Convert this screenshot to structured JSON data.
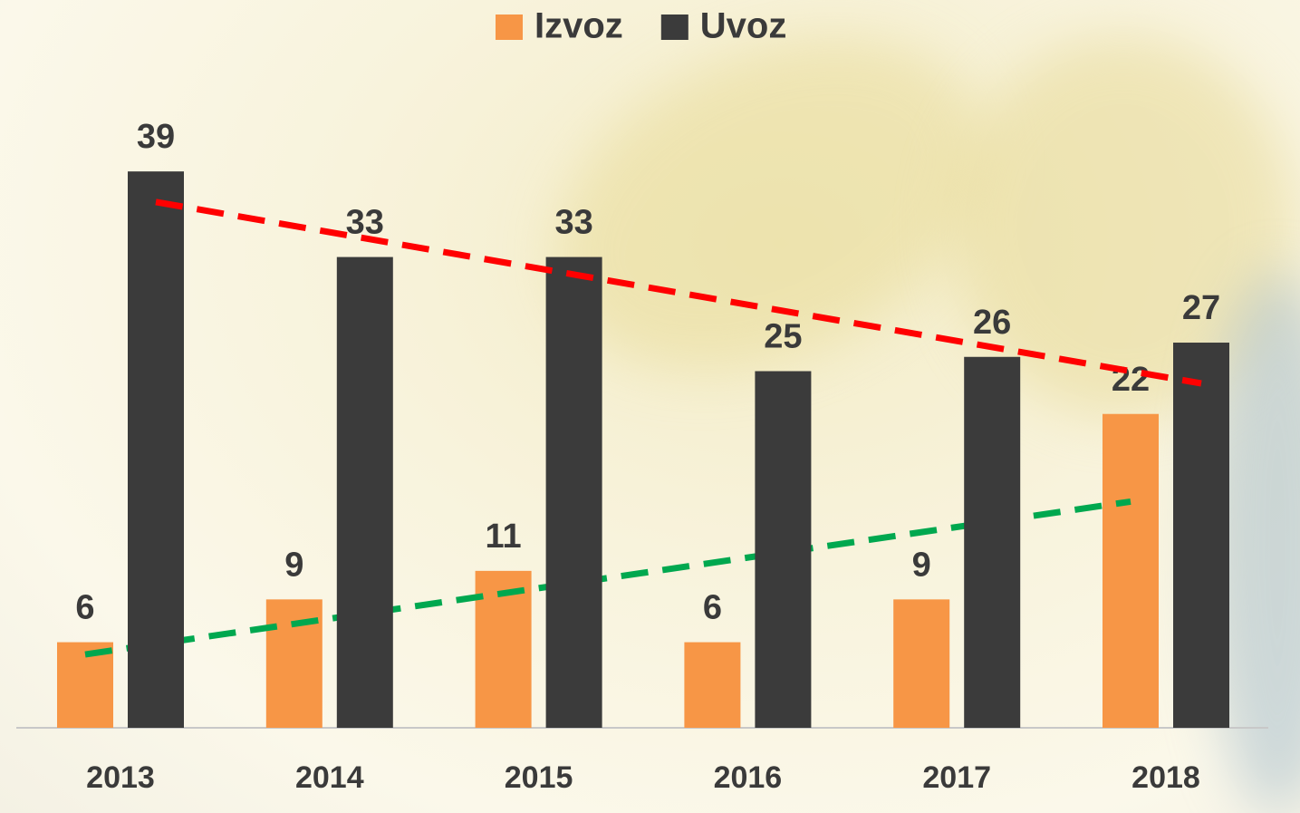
{
  "chart_data": {
    "type": "bar",
    "categories": [
      "2013",
      "2014",
      "2015",
      "2016",
      "2017",
      "2018"
    ],
    "series": [
      {
        "name": "Izvoz",
        "color": "#f79646",
        "values": [
          6,
          9,
          11,
          6,
          9,
          22
        ],
        "trendline_color": "#00a84f"
      },
      {
        "name": "Uvoz",
        "color": "#3b3b3b",
        "values": [
          39,
          33,
          33,
          25,
          26,
          27
        ],
        "trendline_color": "#ff0000"
      }
    ],
    "trendline": true,
    "legend": "top"
  }
}
